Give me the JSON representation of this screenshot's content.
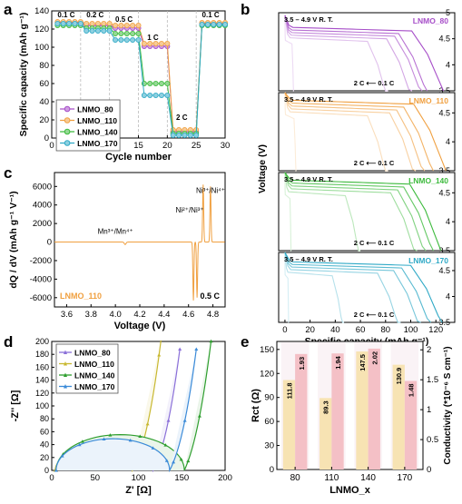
{
  "chart_data": [
    {
      "panel": "a",
      "type": "scatter",
      "xlabel": "Cycle number",
      "ylabel": "Specific capacity (mAh g⁻¹)",
      "xlim": [
        0,
        30
      ],
      "ylim": [
        0,
        140
      ],
      "xticks": [
        "0",
        "5",
        "10",
        "15",
        "20",
        "25",
        "30"
      ],
      "yticks": [
        "0",
        "20",
        "40",
        "60",
        "80",
        "100",
        "120",
        "140"
      ],
      "rate_labels": [
        "0.1 C",
        "0.2 C",
        "0.5 C",
        "1 C",
        "2 C",
        "0.1 C"
      ],
      "series": [
        {
          "name": "LNMO_80",
          "color": "#a64dc8",
          "values": [
            127,
            127,
            127,
            127,
            127,
            124,
            124,
            124,
            124,
            124,
            121,
            121,
            121,
            121,
            121,
            101,
            101,
            101,
            101,
            101,
            7,
            7,
            7,
            7,
            7,
            126,
            126,
            126,
            126,
            126
          ]
        },
        {
          "name": "LNMO_110",
          "color": "#f0a040",
          "values": [
            128,
            128,
            128,
            128,
            128,
            126,
            126,
            126,
            126,
            126,
            124,
            124,
            124,
            124,
            124,
            104,
            104,
            104,
            104,
            104,
            9,
            9,
            9,
            9,
            9,
            127,
            127,
            127,
            127,
            127
          ]
        },
        {
          "name": "LNMO_140",
          "color": "#3cba3c",
          "values": [
            124,
            124,
            124,
            124,
            124,
            121,
            121,
            121,
            121,
            121,
            115,
            115,
            115,
            115,
            115,
            60,
            60,
            60,
            60,
            60,
            5,
            5,
            5,
            5,
            5,
            124,
            124,
            124,
            124,
            124
          ]
        },
        {
          "name": "LNMO_170",
          "color": "#2fa9c6",
          "values": [
            126,
            126,
            126,
            126,
            126,
            118,
            118,
            118,
            118,
            118,
            108,
            108,
            108,
            108,
            108,
            47,
            47,
            47,
            47,
            47,
            3,
            3,
            3,
            3,
            3,
            125,
            125,
            125,
            125,
            125
          ]
        }
      ]
    },
    {
      "panel": "b",
      "type": "line",
      "xlabel": "Specific capacity (mAh g⁻¹)",
      "ylabel": "Voltage (V)",
      "xlim": [
        -5,
        135
      ],
      "ylim": [
        3.5,
        5.0
      ],
      "xticks": [
        "0",
        "20",
        "40",
        "60",
        "80",
        "100",
        "120"
      ],
      "yticks": [
        "3.5",
        "4",
        "4.5"
      ],
      "yticks_top": [
        "3.5",
        "4",
        "4.5",
        "5"
      ],
      "cond": "3.5 – 4.9 V    R. T.",
      "rate_note": "2 C ⟵ 0.1 C",
      "subpanels": [
        {
          "name": "LNMO_80",
          "color": "#a64dc8",
          "caps": [
            7,
            82,
            101,
            109,
            113,
            126
          ]
        },
        {
          "name": "LNMO_110",
          "color": "#f0a040",
          "caps": [
            9,
            82,
            104,
            111,
            118,
            128
          ]
        },
        {
          "name": "LNMO_140",
          "color": "#3cba3c",
          "caps": [
            5,
            60,
            105,
            112,
            118,
            124
          ]
        },
        {
          "name": "LNMO_170",
          "color": "#2fa9c6",
          "caps": [
            3,
            47,
            92,
            108,
            116,
            125
          ]
        }
      ]
    },
    {
      "panel": "c",
      "type": "line",
      "xlabel": "Voltage (V)",
      "ylabel": "dQ / dV (mAh g⁻¹ V⁻¹)",
      "xlim": [
        3.5,
        4.9
      ],
      "ylim": [
        -7000,
        7500
      ],
      "xticks": [
        "3.6",
        "3.8",
        "4.0",
        "4.2",
        "4.4",
        "4.6",
        "4.8"
      ],
      "yticks": [
        "-6000",
        "-4000",
        "-2000",
        "0",
        "2000",
        "4000",
        "6000"
      ],
      "series_name": "LNMO_110",
      "color": "#f0a040",
      "rate": "0.5 C",
      "annotations": [
        "Mn³⁺/Mn⁴⁺",
        "Ni²⁺/Ni³⁺",
        "Ni³⁺/Ni⁴⁺"
      ],
      "peaks": [
        {
          "v": 4.08,
          "h": 380
        },
        {
          "v": 4.72,
          "h": 6200
        },
        {
          "v": 4.78,
          "h": 6000
        },
        {
          "v": 4.64,
          "h": -6300
        },
        {
          "v": 4.67,
          "h": -6000
        },
        {
          "v": 4.08,
          "h": -650
        }
      ]
    },
    {
      "panel": "d",
      "type": "scatter",
      "xlabel": "Z' [Ω]",
      "ylabel": "-Z'' [Ω]",
      "xlim": [
        0,
        200
      ],
      "ylim": [
        0,
        200
      ],
      "xticks": [
        "0",
        "50",
        "100",
        "150",
        "200"
      ],
      "yticks": [
        "0",
        "20",
        "40",
        "60",
        "80",
        "100",
        "120",
        "140",
        "160",
        "180",
        "200"
      ],
      "series": [
        {
          "name": "LNMO_80",
          "color": "#8a6fd8",
          "r0": 5,
          "rct": 112,
          "warburg": 2.6
        },
        {
          "name": "LNMO_110",
          "color": "#c8b830",
          "r0": 4,
          "rct": 89,
          "warburg": 2.3
        },
        {
          "name": "LNMO_140",
          "color": "#2e9e2e",
          "r0": 5,
          "rct": 148,
          "warburg": 3.0
        },
        {
          "name": "LNMO_170",
          "color": "#3a8ad8",
          "r0": 5,
          "rct": 131,
          "warburg": 2.6
        }
      ]
    },
    {
      "panel": "e",
      "type": "bar",
      "xlabel": "LNMO_x",
      "ylabel": "Rct (Ω)",
      "ylabel2": "Conductivity (*10⁻⁶ S cm⁻¹)",
      "categories": [
        "80",
        "110",
        "140",
        "170"
      ],
      "ylim": [
        0,
        160
      ],
      "y2lim": [
        0,
        2.14
      ],
      "yticks": [
        "0",
        "30",
        "60",
        "90",
        "120",
        "150"
      ],
      "y2ticks": [
        "0",
        "0.5",
        "1",
        "1.5",
        "2"
      ],
      "rct_values": [
        111.8,
        89.3,
        147.5,
        130.9
      ],
      "cond_values": [
        1.93,
        1.94,
        2.02,
        1.48
      ],
      "rct_labels": [
        "111.8",
        "89.3",
        "147.5",
        "130.9"
      ],
      "cond_labels": [
        "1.93",
        "1.94",
        "2.02",
        "1.48"
      ],
      "rct_color": "#f7e3b3",
      "cond_color": "#f4c0c6"
    }
  ]
}
